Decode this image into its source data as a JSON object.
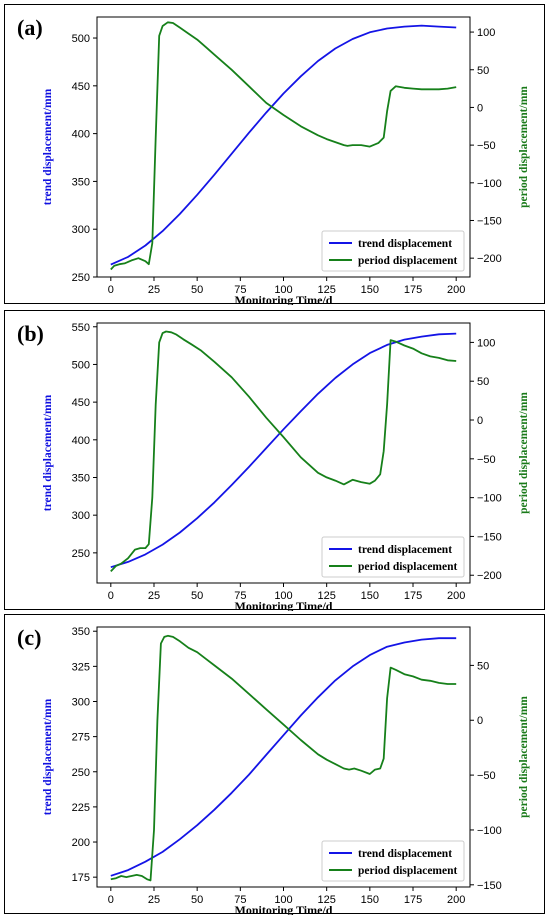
{
  "colors": {
    "trend": "#1414e6",
    "period": "#16801a",
    "axis": "#000000"
  },
  "chart_data": [
    {
      "type": "line",
      "panel_label": "(a)",
      "xlabel": "Monitoring Time/d",
      "ylabel_left": "trend displacement/mm",
      "ylabel_right": "period displacement/mm",
      "xlim": [
        -8,
        208
      ],
      "xticks": [
        0,
        25,
        50,
        75,
        100,
        125,
        150,
        175,
        200
      ],
      "ylim_left": [
        250,
        522
      ],
      "yticks_left": [
        250,
        300,
        350,
        400,
        450,
        500
      ],
      "ylim_right": [
        -225,
        120
      ],
      "yticks_right": [
        -200,
        -150,
        -100,
        -50,
        0,
        50,
        100
      ],
      "legend": {
        "position": "lower-right",
        "entries": [
          "trend displacement",
          "period displacement"
        ]
      },
      "series": [
        {
          "name": "trend displacement",
          "axis": "left",
          "x": [
            0,
            10,
            20,
            30,
            40,
            50,
            60,
            70,
            80,
            90,
            100,
            110,
            120,
            130,
            140,
            150,
            160,
            170,
            180,
            190,
            200
          ],
          "values": [
            263,
            271,
            283,
            298,
            316,
            336,
            357,
            379,
            401,
            422,
            442,
            460,
            476,
            489,
            499,
            506,
            510,
            512,
            513,
            512,
            511
          ]
        },
        {
          "name": "period displacement",
          "axis": "right",
          "x": [
            0,
            2,
            5,
            8,
            12,
            16,
            20,
            22,
            24,
            26,
            28,
            30,
            33,
            36,
            40,
            45,
            50,
            55,
            60,
            70,
            80,
            90,
            100,
            110,
            120,
            125,
            130,
            135,
            137,
            140,
            145,
            150,
            155,
            158,
            160,
            162,
            165,
            170,
            175,
            180,
            185,
            190,
            195,
            200
          ],
          "values": [
            -215,
            -210,
            -208,
            -207,
            -203,
            -200,
            -204,
            -208,
            -180,
            -40,
            95,
            108,
            113,
            112,
            106,
            98,
            90,
            80,
            70,
            50,
            28,
            6,
            -10,
            -25,
            -37,
            -42,
            -46,
            -50,
            -51,
            -50,
            -50,
            -52,
            -47,
            -40,
            -5,
            22,
            28,
            26,
            25,
            24,
            24,
            24,
            25,
            27
          ]
        }
      ]
    },
    {
      "type": "line",
      "panel_label": "(b)",
      "xlabel": "Monitoring Time/d",
      "ylabel_left": "trend displacement/mm",
      "ylabel_right": "period displacement/mm",
      "xlim": [
        -8,
        208
      ],
      "xticks": [
        0,
        25,
        50,
        75,
        100,
        125,
        150,
        175,
        200
      ],
      "ylim_left": [
        210,
        555
      ],
      "yticks_left": [
        250,
        300,
        350,
        400,
        450,
        500,
        550
      ],
      "ylim_right": [
        -210,
        125
      ],
      "yticks_right": [
        -200,
        -150,
        -100,
        -50,
        0,
        50,
        100
      ],
      "legend": {
        "position": "lower-right",
        "entries": [
          "trend displacement",
          "period displacement"
        ]
      },
      "series": [
        {
          "name": "trend displacement",
          "axis": "left",
          "x": [
            0,
            10,
            20,
            30,
            40,
            50,
            60,
            70,
            80,
            90,
            100,
            110,
            120,
            130,
            140,
            150,
            160,
            170,
            180,
            190,
            200
          ],
          "values": [
            231,
            238,
            248,
            261,
            277,
            296,
            317,
            340,
            364,
            389,
            414,
            438,
            461,
            482,
            500,
            515,
            526,
            533,
            537,
            540,
            541
          ]
        },
        {
          "name": "period displacement",
          "axis": "right",
          "x": [
            0,
            3,
            6,
            10,
            14,
            17,
            20,
            22,
            24,
            26,
            28,
            30,
            32,
            35,
            38,
            42,
            47,
            52,
            60,
            70,
            80,
            90,
            100,
            110,
            120,
            125,
            130,
            135,
            140,
            145,
            150,
            153,
            156,
            158,
            160,
            162,
            165,
            170,
            175,
            180,
            185,
            190,
            195,
            200
          ],
          "values": [
            -195,
            -188,
            -185,
            -178,
            -167,
            -165,
            -165,
            -160,
            -100,
            20,
            100,
            112,
            114,
            113,
            110,
            104,
            97,
            90,
            75,
            55,
            30,
            3,
            -22,
            -48,
            -68,
            -74,
            -78,
            -83,
            -77,
            -80,
            -82,
            -78,
            -70,
            -40,
            20,
            103,
            101,
            96,
            92,
            86,
            82,
            80,
            77,
            76
          ]
        }
      ]
    },
    {
      "type": "line",
      "panel_label": "(c)",
      "xlabel": "Monitoring Time/d",
      "ylabel_left": "trend displacement/mm",
      "ylabel_right": "period displacement/mm",
      "xlim": [
        -8,
        208
      ],
      "xticks": [
        0,
        25,
        50,
        75,
        100,
        125,
        150,
        175,
        200
      ],
      "ylim_left": [
        168,
        353
      ],
      "yticks_left": [
        175,
        200,
        225,
        250,
        275,
        300,
        325,
        350
      ],
      "ylim_right": [
        -152,
        85
      ],
      "yticks_right": [
        -150,
        -100,
        -50,
        0,
        50
      ],
      "legend": {
        "position": "lower-right",
        "entries": [
          "trend displacement",
          "period displacement"
        ]
      },
      "series": [
        {
          "name": "trend displacement",
          "axis": "left",
          "x": [
            0,
            10,
            20,
            30,
            40,
            50,
            60,
            70,
            80,
            90,
            100,
            110,
            120,
            130,
            140,
            150,
            160,
            170,
            180,
            190,
            200
          ],
          "values": [
            176,
            180,
            186,
            193,
            202,
            212,
            223,
            235,
            248,
            262,
            276,
            290,
            303,
            315,
            325,
            333,
            339,
            342,
            344,
            345,
            345
          ]
        },
        {
          "name": "period displacement",
          "axis": "right",
          "x": [
            0,
            3,
            6,
            9,
            12,
            15,
            18,
            21,
            23,
            25,
            27,
            29,
            31,
            33,
            36,
            40,
            45,
            50,
            55,
            60,
            70,
            80,
            90,
            100,
            110,
            120,
            125,
            130,
            135,
            138,
            141,
            145,
            150,
            153,
            156,
            158,
            160,
            162,
            165,
            170,
            175,
            180,
            185,
            190,
            195,
            200
          ],
          "values": [
            -145,
            -144,
            -142,
            -143,
            -142,
            -141,
            -142,
            -145,
            -146,
            -100,
            0,
            70,
            76,
            77,
            76,
            72,
            66,
            62,
            56,
            50,
            38,
            24,
            10,
            -4,
            -18,
            -31,
            -36,
            -40,
            -44,
            -45,
            -44,
            -46,
            -49,
            -45,
            -44,
            -35,
            20,
            48,
            46,
            42,
            40,
            37,
            36,
            34,
            33,
            33
          ]
        }
      ]
    }
  ]
}
